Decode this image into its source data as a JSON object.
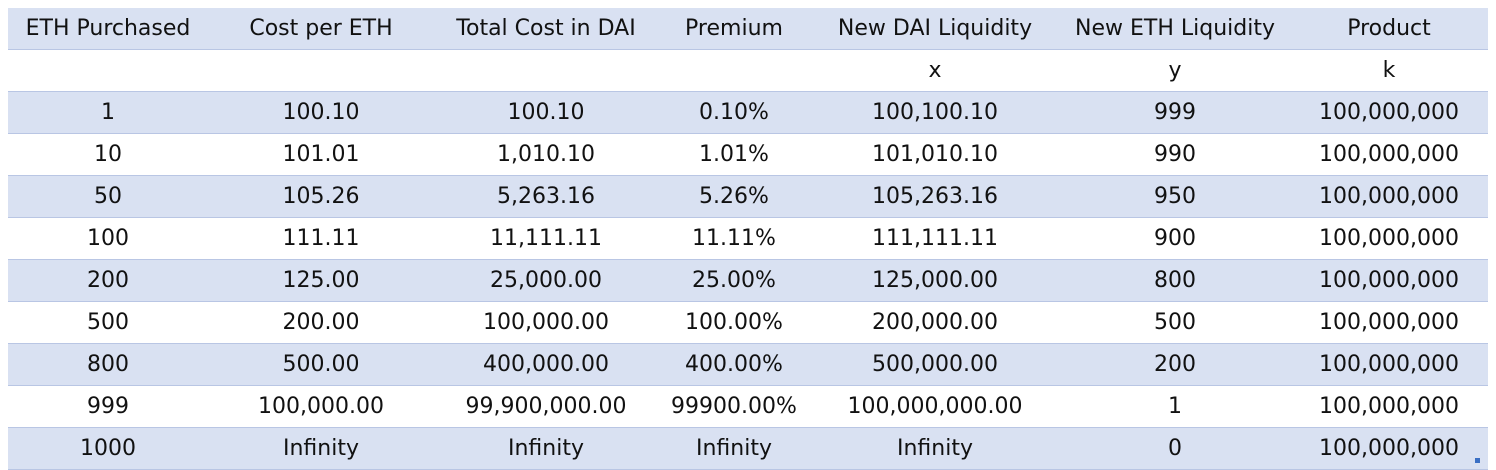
{
  "headers": [
    "ETH Purchased",
    "Cost per ETH",
    "Total Cost in DAI",
    "Premium",
    "New DAI Liquidity",
    "New ETH Liquidity",
    "Product"
  ],
  "variables": [
    "",
    "",
    "",
    "",
    "x",
    "y",
    "k"
  ],
  "rows": [
    [
      "1",
      "100.10",
      "100.10",
      "0.10%",
      "100,100.10",
      "999",
      "100,000,000"
    ],
    [
      "10",
      "101.01",
      "1,010.10",
      "1.01%",
      "101,010.10",
      "990",
      "100,000,000"
    ],
    [
      "50",
      "105.26",
      "5,263.16",
      "5.26%",
      "105,263.16",
      "950",
      "100,000,000"
    ],
    [
      "100",
      "111.11",
      "11,111.11",
      "11.11%",
      "111,111.11",
      "900",
      "100,000,000"
    ],
    [
      "200",
      "125.00",
      "25,000.00",
      "25.00%",
      "125,000.00",
      "800",
      "100,000,000"
    ],
    [
      "500",
      "200.00",
      "100,000.00",
      "100.00%",
      "200,000.00",
      "500",
      "100,000,000"
    ],
    [
      "800",
      "500.00",
      "400,000.00",
      "400.00%",
      "500,000.00",
      "200",
      "100,000,000"
    ],
    [
      "999",
      "100,000.00",
      "99,900,000.00",
      "99900.00%",
      "100,000,000.00",
      "1",
      "100,000,000"
    ],
    [
      "1000",
      "Infinity",
      "Infinity",
      "Infinity",
      "Infinity",
      "0",
      "100,000,000"
    ]
  ],
  "colors": {
    "band": "#d9e1f2",
    "rule": "#b9c6e4",
    "selection_handle": "#3a6fc4"
  }
}
